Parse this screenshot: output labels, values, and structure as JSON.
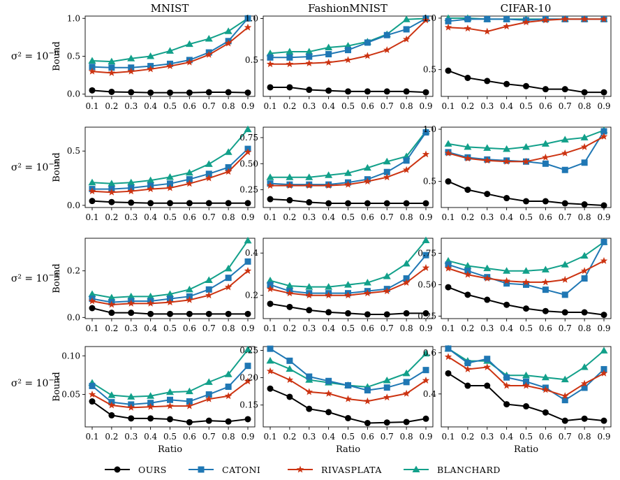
{
  "figure": {
    "columns": [
      "MNIST",
      "FashionMNIST",
      "CIFAR-10"
    ],
    "rows": [
      {
        "label_base": "σ² = 10",
        "label_exp": "−6"
      },
      {
        "label_base": "σ² = 10",
        "label_exp": "−5"
      },
      {
        "label_base": "σ² = 10",
        "label_exp": "−4"
      },
      {
        "label_base": "σ² = 10",
        "label_exp": "−3"
      }
    ],
    "ylabel": "Bound",
    "xlabel": "Ratio",
    "legend": [
      {
        "name": "OURS",
        "color": "#000000",
        "marker": "circle"
      },
      {
        "name": "CATONI",
        "color": "#1f77b4",
        "marker": "square"
      },
      {
        "name": "RIVASPLATA",
        "color": "#cc3311",
        "marker": "star"
      },
      {
        "name": "BLANCHARD",
        "color": "#12a08a",
        "marker": "triangle"
      }
    ]
  },
  "chart_data": [
    {
      "type": "line",
      "row": 0,
      "col": 0,
      "title": "MNIST",
      "ylabel": "Bound",
      "xlabel": "",
      "categories": [
        "0.1",
        "0.2",
        "0.3",
        "0.4",
        "0.5",
        "0.6",
        "0.7",
        "0.8",
        "0.9"
      ],
      "ylim": [
        -0.03,
        1.03
      ],
      "yticks": [
        0,
        0.5,
        1
      ],
      "ytick_labels": [
        "0.0",
        "0.5",
        "1.0"
      ],
      "series": [
        {
          "name": "OURS",
          "values": [
            0.05,
            0.03,
            0.025,
            0.02,
            0.02,
            0.02,
            0.025,
            0.025,
            0.02
          ]
        },
        {
          "name": "CATONI",
          "values": [
            0.36,
            0.35,
            0.35,
            0.37,
            0.4,
            0.45,
            0.55,
            0.7,
            1.0
          ]
        },
        {
          "name": "RIVASPLATA",
          "values": [
            0.3,
            0.28,
            0.3,
            0.33,
            0.37,
            0.42,
            0.52,
            0.67,
            0.88
          ]
        },
        {
          "name": "BLANCHARD",
          "values": [
            0.44,
            0.43,
            0.47,
            0.5,
            0.57,
            0.66,
            0.73,
            0.83,
            1.0
          ]
        }
      ]
    },
    {
      "type": "line",
      "row": 0,
      "col": 1,
      "title": "FashionMNIST",
      "ylabel": "",
      "xlabel": "",
      "categories": [
        "0.1",
        "0.2",
        "0.3",
        "0.4",
        "0.5",
        "0.6",
        "0.7",
        "0.8",
        "0.9"
      ],
      "ylim": [
        0.06,
        1.03
      ],
      "yticks": [
        0.5,
        1
      ],
      "ytick_labels": [
        "0.5",
        "1.0"
      ],
      "series": [
        {
          "name": "OURS",
          "values": [
            0.17,
            0.17,
            0.14,
            0.13,
            0.12,
            0.12,
            0.12,
            0.12,
            0.11
          ]
        },
        {
          "name": "CATONI",
          "values": [
            0.53,
            0.53,
            0.54,
            0.57,
            0.62,
            0.71,
            0.8,
            0.87,
            1.0
          ]
        },
        {
          "name": "RIVASPLATA",
          "values": [
            0.45,
            0.45,
            0.46,
            0.47,
            0.5,
            0.55,
            0.62,
            0.75,
            0.98
          ]
        },
        {
          "name": "BLANCHARD",
          "values": [
            0.58,
            0.6,
            0.6,
            0.65,
            0.67,
            0.72,
            0.81,
            0.99,
            1.0
          ]
        }
      ]
    },
    {
      "type": "line",
      "row": 0,
      "col": 2,
      "title": "CIFAR-10",
      "ylabel": "",
      "xlabel": "",
      "categories": [
        "0.1",
        "0.2",
        "0.3",
        "0.4",
        "0.5",
        "0.6",
        "0.7",
        "0.8",
        "0.9"
      ],
      "ylim": [
        0.24,
        1.02
      ],
      "yticks": [
        0.5,
        1
      ],
      "ytick_labels": [
        "0.5",
        "1.0"
      ],
      "series": [
        {
          "name": "OURS",
          "values": [
            0.49,
            0.42,
            0.39,
            0.36,
            0.34,
            0.31,
            0.31,
            0.28,
            0.28
          ]
        },
        {
          "name": "CATONI",
          "values": [
            0.97,
            0.99,
            0.99,
            0.99,
            0.98,
            0.99,
            0.99,
            0.99,
            0.99
          ]
        },
        {
          "name": "RIVASPLATA",
          "values": [
            0.91,
            0.9,
            0.87,
            0.92,
            0.96,
            0.98,
            0.99,
            0.99,
            0.99
          ]
        },
        {
          "name": "BLANCHARD",
          "values": [
            1.0,
            1.0,
            0.99,
            0.99,
            0.99,
            0.99,
            0.99,
            0.99,
            0.99
          ]
        }
      ]
    },
    {
      "type": "line",
      "row": 1,
      "col": 0,
      "title": "",
      "ylabel": "Bound",
      "xlabel": "",
      "categories": [
        "0.1",
        "0.2",
        "0.3",
        "0.4",
        "0.5",
        "0.6",
        "0.7",
        "0.8",
        "0.9"
      ],
      "ylim": [
        -0.02,
        0.72
      ],
      "yticks": [
        0,
        0.5
      ],
      "ytick_labels": [
        "0.0",
        "0.5"
      ],
      "series": [
        {
          "name": "OURS",
          "values": [
            0.04,
            0.03,
            0.025,
            0.02,
            0.02,
            0.02,
            0.02,
            0.02,
            0.02
          ]
        },
        {
          "name": "CATONI",
          "values": [
            0.15,
            0.15,
            0.16,
            0.18,
            0.2,
            0.24,
            0.29,
            0.35,
            0.52
          ]
        },
        {
          "name": "RIVASPLATA",
          "values": [
            0.13,
            0.12,
            0.13,
            0.15,
            0.16,
            0.2,
            0.25,
            0.31,
            0.49
          ]
        },
        {
          "name": "BLANCHARD",
          "values": [
            0.21,
            0.2,
            0.21,
            0.23,
            0.26,
            0.3,
            0.38,
            0.49,
            0.7
          ]
        }
      ]
    },
    {
      "type": "line",
      "row": 1,
      "col": 1,
      "title": "",
      "ylabel": "",
      "xlabel": "",
      "categories": [
        "0.1",
        "0.2",
        "0.3",
        "0.4",
        "0.5",
        "0.6",
        "0.7",
        "0.8",
        "0.9"
      ],
      "ylim": [
        0.08,
        0.85
      ],
      "yticks": [
        0.25,
        0.5,
        0.75
      ],
      "ytick_labels": [
        "0.25",
        "0.50",
        "0.75"
      ],
      "series": [
        {
          "name": "OURS",
          "values": [
            0.16,
            0.15,
            0.13,
            0.12,
            0.12,
            0.12,
            0.12,
            0.12,
            0.12
          ]
        },
        {
          "name": "CATONI",
          "values": [
            0.31,
            0.3,
            0.3,
            0.3,
            0.32,
            0.35,
            0.42,
            0.53,
            0.8
          ]
        },
        {
          "name": "RIVASPLATA",
          "values": [
            0.29,
            0.29,
            0.29,
            0.29,
            0.3,
            0.33,
            0.37,
            0.44,
            0.59
          ]
        },
        {
          "name": "BLANCHARD",
          "values": [
            0.37,
            0.37,
            0.37,
            0.39,
            0.41,
            0.46,
            0.52,
            0.57,
            0.81
          ]
        }
      ]
    },
    {
      "type": "line",
      "row": 1,
      "col": 2,
      "title": "",
      "ylabel": "",
      "xlabel": "",
      "categories": [
        "0.1",
        "0.2",
        "0.3",
        "0.4",
        "0.5",
        "0.6",
        "0.7",
        "0.8",
        "0.9"
      ],
      "ylim": [
        0.25,
        1.02
      ],
      "yticks": [
        0.5,
        1
      ],
      "ytick_labels": [
        "0.5",
        "1.0"
      ],
      "series": [
        {
          "name": "OURS",
          "values": [
            0.5,
            0.42,
            0.38,
            0.34,
            0.31,
            0.31,
            0.29,
            0.28,
            0.27
          ]
        },
        {
          "name": "CATONI",
          "values": [
            0.78,
            0.73,
            0.71,
            0.7,
            0.69,
            0.67,
            0.61,
            0.68,
            0.98
          ]
        },
        {
          "name": "RIVASPLATA",
          "values": [
            0.77,
            0.72,
            0.7,
            0.69,
            0.69,
            0.73,
            0.77,
            0.83,
            0.93
          ]
        },
        {
          "name": "BLANCHARD",
          "values": [
            0.86,
            0.83,
            0.82,
            0.81,
            0.83,
            0.86,
            0.9,
            0.92,
            0.99
          ]
        }
      ]
    },
    {
      "type": "line",
      "row": 2,
      "col": 0,
      "title": "",
      "ylabel": "Bound",
      "xlabel": "",
      "categories": [
        "0.1",
        "0.2",
        "0.3",
        "0.4",
        "0.5",
        "0.6",
        "0.7",
        "0.8",
        "0.9"
      ],
      "ylim": [
        -0.005,
        0.34
      ],
      "yticks": [
        0,
        0.2
      ],
      "ytick_labels": [
        "0.0",
        "0.2"
      ],
      "series": [
        {
          "name": "OURS",
          "values": [
            0.04,
            0.02,
            0.02,
            0.015,
            0.015,
            0.015,
            0.015,
            0.015,
            0.015
          ]
        },
        {
          "name": "CATONI",
          "values": [
            0.08,
            0.065,
            0.07,
            0.07,
            0.08,
            0.09,
            0.12,
            0.17,
            0.24
          ]
        },
        {
          "name": "RIVASPLATA",
          "values": [
            0.07,
            0.055,
            0.06,
            0.06,
            0.065,
            0.075,
            0.095,
            0.13,
            0.2
          ]
        },
        {
          "name": "BLANCHARD",
          "values": [
            0.1,
            0.085,
            0.09,
            0.09,
            0.1,
            0.12,
            0.16,
            0.21,
            0.33
          ]
        }
      ]
    },
    {
      "type": "line",
      "row": 2,
      "col": 1,
      "title": "",
      "ylabel": "",
      "xlabel": "",
      "categories": [
        "0.1",
        "0.2",
        "0.3",
        "0.4",
        "0.5",
        "0.6",
        "0.7",
        "0.8",
        "0.9"
      ],
      "ylim": [
        0.09,
        0.47
      ],
      "yticks": [
        0.2,
        0.4
      ],
      "ytick_labels": [
        "0.2",
        "0.4"
      ],
      "series": [
        {
          "name": "OURS",
          "values": [
            0.16,
            0.145,
            0.13,
            0.12,
            0.115,
            0.11,
            0.11,
            0.115,
            0.115
          ]
        },
        {
          "name": "CATONI",
          "values": [
            0.25,
            0.22,
            0.21,
            0.21,
            0.21,
            0.22,
            0.23,
            0.28,
            0.39
          ]
        },
        {
          "name": "RIVASPLATA",
          "values": [
            0.23,
            0.21,
            0.2,
            0.2,
            0.2,
            0.21,
            0.22,
            0.26,
            0.33
          ]
        },
        {
          "name": "BLANCHARD",
          "values": [
            0.27,
            0.245,
            0.24,
            0.24,
            0.25,
            0.26,
            0.29,
            0.35,
            0.46
          ]
        }
      ]
    },
    {
      "type": "line",
      "row": 2,
      "col": 2,
      "title": "",
      "ylabel": "",
      "xlabel": "",
      "categories": [
        "0.1",
        "0.2",
        "0.3",
        "0.4",
        "0.5",
        "0.6",
        "0.7",
        "0.8",
        "0.9"
      ],
      "ylim": [
        0.23,
        0.87
      ],
      "yticks": [
        0.25,
        0.5,
        0.75
      ],
      "ytick_labels": [
        "0.25",
        "0.50",
        "0.75"
      ],
      "series": [
        {
          "name": "OURS",
          "values": [
            0.48,
            0.42,
            0.38,
            0.34,
            0.31,
            0.29,
            0.28,
            0.28,
            0.26
          ]
        },
        {
          "name": "CATONI",
          "values": [
            0.66,
            0.61,
            0.56,
            0.51,
            0.5,
            0.46,
            0.42,
            0.55,
            0.84
          ]
        },
        {
          "name": "RIVASPLATA",
          "values": [
            0.63,
            0.58,
            0.55,
            0.53,
            0.52,
            0.52,
            0.54,
            0.61,
            0.69
          ]
        },
        {
          "name": "BLANCHARD",
          "values": [
            0.69,
            0.65,
            0.63,
            0.61,
            0.61,
            0.62,
            0.66,
            0.73,
            0.84
          ]
        }
      ]
    },
    {
      "type": "line",
      "row": 3,
      "col": 0,
      "title": "",
      "ylabel": "Bound",
      "xlabel": "Ratio",
      "categories": [
        "0.1",
        "0.2",
        "0.3",
        "0.4",
        "0.5",
        "0.6",
        "0.7",
        "0.8",
        "0.9"
      ],
      "ylim": [
        0.008,
        0.112
      ],
      "yticks": [
        0.05,
        0.1
      ],
      "ytick_labels": [
        "0.05",
        "0.10"
      ],
      "series": [
        {
          "name": "OURS",
          "values": [
            0.041,
            0.023,
            0.019,
            0.019,
            0.018,
            0.014,
            0.016,
            0.015,
            0.018
          ]
        },
        {
          "name": "CATONI",
          "values": [
            0.061,
            0.04,
            0.037,
            0.039,
            0.043,
            0.041,
            0.05,
            0.06,
            0.087
          ]
        },
        {
          "name": "RIVASPLATA",
          "values": [
            0.05,
            0.036,
            0.033,
            0.034,
            0.035,
            0.035,
            0.044,
            0.048,
            0.067
          ]
        },
        {
          "name": "BLANCHARD",
          "values": [
            0.065,
            0.049,
            0.047,
            0.048,
            0.053,
            0.054,
            0.066,
            0.076,
            0.108
          ]
        }
      ]
    },
    {
      "type": "line",
      "row": 3,
      "col": 1,
      "title": "",
      "ylabel": "",
      "xlabel": "Ratio",
      "categories": [
        "0.1",
        "0.2",
        "0.3",
        "0.4",
        "0.5",
        "0.6",
        "0.7",
        "0.8",
        "0.9"
      ],
      "ylim": [
        0.11,
        0.257
      ],
      "yticks": [
        0.15,
        0.2,
        0.25
      ],
      "ytick_labels": [
        "0.15",
        "0.20",
        "0.25"
      ],
      "series": [
        {
          "name": "OURS",
          "values": [
            0.18,
            0.165,
            0.143,
            0.137,
            0.126,
            0.117,
            0.118,
            0.119,
            0.125
          ]
        },
        {
          "name": "CATONI",
          "values": [
            0.253,
            0.231,
            0.202,
            0.194,
            0.186,
            0.177,
            0.182,
            0.192,
            0.214
          ]
        },
        {
          "name": "RIVASPLATA",
          "values": [
            0.212,
            0.196,
            0.174,
            0.171,
            0.161,
            0.157,
            0.164,
            0.171,
            0.195
          ]
        },
        {
          "name": "BLANCHARD",
          "values": [
            0.231,
            0.216,
            0.196,
            0.191,
            0.186,
            0.183,
            0.195,
            0.208,
            0.244
          ]
        }
      ]
    },
    {
      "type": "line",
      "row": 3,
      "col": 2,
      "title": "",
      "ylabel": "",
      "xlabel": "Ratio",
      "categories": [
        "0.1",
        "0.2",
        "0.3",
        "0.4",
        "0.5",
        "0.6",
        "0.7",
        "0.8",
        "0.9"
      ],
      "ylim": [
        0.24,
        0.63
      ],
      "yticks": [
        0.4,
        0.6
      ],
      "ytick_labels": [
        "0.4",
        "0.6"
      ],
      "series": [
        {
          "name": "OURS",
          "values": [
            0.5,
            0.44,
            0.44,
            0.35,
            0.34,
            0.31,
            0.27,
            0.28,
            0.27
          ]
        },
        {
          "name": "CATONI",
          "values": [
            0.62,
            0.55,
            0.57,
            0.48,
            0.46,
            0.43,
            0.37,
            0.43,
            0.52
          ]
        },
        {
          "name": "RIVASPLATA",
          "values": [
            0.58,
            0.52,
            0.53,
            0.44,
            0.44,
            0.42,
            0.39,
            0.45,
            0.5
          ]
        },
        {
          "name": "BLANCHARD",
          "values": [
            0.62,
            0.56,
            0.56,
            0.49,
            0.49,
            0.48,
            0.47,
            0.53,
            0.61
          ]
        }
      ]
    }
  ]
}
